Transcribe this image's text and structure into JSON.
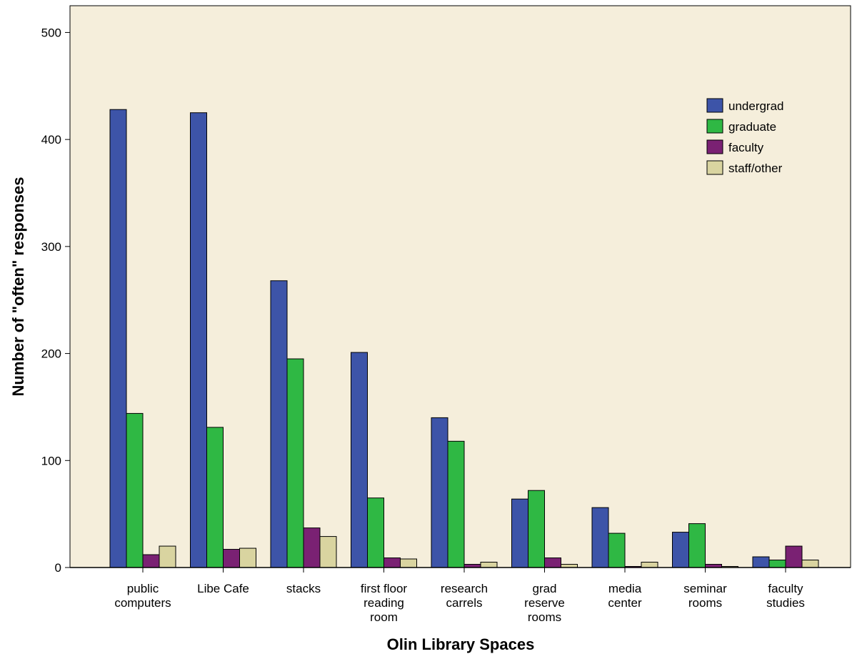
{
  "chart_data": {
    "type": "bar",
    "title": "",
    "xlabel": "Olin Library Spaces",
    "ylabel": "Number of \"often\" responses",
    "ylim": [
      0,
      525
    ],
    "yticks": [
      0,
      100,
      200,
      300,
      400,
      500
    ],
    "grid": false,
    "legend_position": "top-right",
    "background_color": "#f5eedb",
    "categories": [
      [
        "public",
        "computers"
      ],
      [
        "Libe Cafe"
      ],
      [
        "stacks"
      ],
      [
        "first floor",
        "reading",
        "room"
      ],
      [
        "research",
        "carrels"
      ],
      [
        "grad",
        "reserve",
        "rooms"
      ],
      [
        "media",
        "center"
      ],
      [
        "seminar",
        "rooms"
      ],
      [
        "faculty",
        "studies"
      ]
    ],
    "series": [
      {
        "name": "undergrad",
        "color": "#3d54a8",
        "values": [
          428,
          425,
          268,
          201,
          140,
          64,
          56,
          33,
          10
        ]
      },
      {
        "name": "graduate",
        "color": "#2fb844",
        "values": [
          144,
          131,
          195,
          65,
          118,
          72,
          32,
          41,
          7
        ]
      },
      {
        "name": "faculty",
        "color": "#7a2173",
        "values": [
          12,
          17,
          37,
          9,
          3,
          9,
          1,
          3,
          20
        ]
      },
      {
        "name": "staff/other",
        "color": "#d9d4a0",
        "values": [
          20,
          18,
          29,
          8,
          5,
          3,
          5,
          1,
          7
        ]
      }
    ]
  }
}
